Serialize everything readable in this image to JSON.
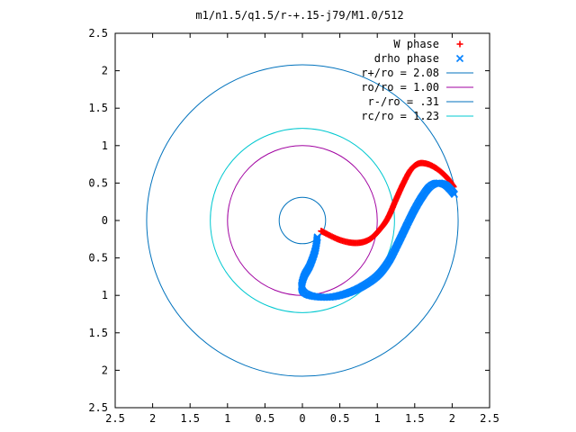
{
  "chart_data": {
    "type": "scatter",
    "title": "m1/n1.5/q1.5/r-+.15-j79/M1.0/512",
    "xlabel": "",
    "ylabel": "",
    "xlim": [
      -2.5,
      2.5
    ],
    "ylim": [
      -2.5,
      2.5
    ],
    "x_ticks": [
      "2.5",
      "2",
      "1.5",
      "1",
      "0.5",
      "0",
      "0.5",
      "1",
      "1.5",
      "2",
      "2.5"
    ],
    "y_ticks": [
      "2.5",
      "2",
      "1.5",
      "1",
      "0.5",
      "0",
      "0.5",
      "1",
      "1.5",
      "2",
      "2.5"
    ],
    "grid": false,
    "legend_position": "top-right",
    "series": [
      {
        "name": "W phase",
        "kind": "points",
        "marker": "+",
        "color": "#ff0000",
        "path": [
          [
            0.25,
            -0.14
          ],
          [
            0.5,
            -0.26
          ],
          [
            0.72,
            -0.3
          ],
          [
            0.9,
            -0.25
          ],
          [
            1.05,
            -0.1
          ],
          [
            1.15,
            0.05
          ],
          [
            1.25,
            0.28
          ],
          [
            1.35,
            0.5
          ],
          [
            1.45,
            0.68
          ],
          [
            1.55,
            0.76
          ],
          [
            1.65,
            0.76
          ],
          [
            1.75,
            0.72
          ],
          [
            1.85,
            0.65
          ],
          [
            1.95,
            0.55
          ],
          [
            2.02,
            0.45
          ]
        ]
      },
      {
        "name": "drho phase",
        "kind": "points",
        "marker": "x",
        "color": "#0080ff",
        "path": [
          [
            0.2,
            -0.22
          ],
          [
            0.17,
            -0.4
          ],
          [
            0.1,
            -0.6
          ],
          [
            0.02,
            -0.75
          ],
          [
            -0.01,
            -0.9
          ],
          [
            0.05,
            -0.98
          ],
          [
            0.2,
            -1.02
          ],
          [
            0.4,
            -1.02
          ],
          [
            0.6,
            -0.97
          ],
          [
            0.8,
            -0.88
          ],
          [
            1.0,
            -0.74
          ],
          [
            1.15,
            -0.55
          ],
          [
            1.28,
            -0.3
          ],
          [
            1.4,
            -0.05
          ],
          [
            1.5,
            0.15
          ],
          [
            1.6,
            0.32
          ],
          [
            1.7,
            0.45
          ],
          [
            1.8,
            0.5
          ],
          [
            1.9,
            0.48
          ],
          [
            1.97,
            0.42
          ],
          [
            2.03,
            0.35
          ]
        ]
      },
      {
        "name": "r+/ro = 2.08",
        "kind": "circle",
        "radius": 2.08,
        "color": "#0072bd"
      },
      {
        "name": "ro/ro = 1.00",
        "kind": "circle",
        "radius": 1.0,
        "color": "#a000a0"
      },
      {
        "name": "r-/ro = .31",
        "kind": "circle",
        "radius": 0.31,
        "color": "#0072bd"
      },
      {
        "name": "rc/ro = 1.23",
        "kind": "circle",
        "radius": 1.23,
        "color": "#00c8d0"
      }
    ]
  }
}
